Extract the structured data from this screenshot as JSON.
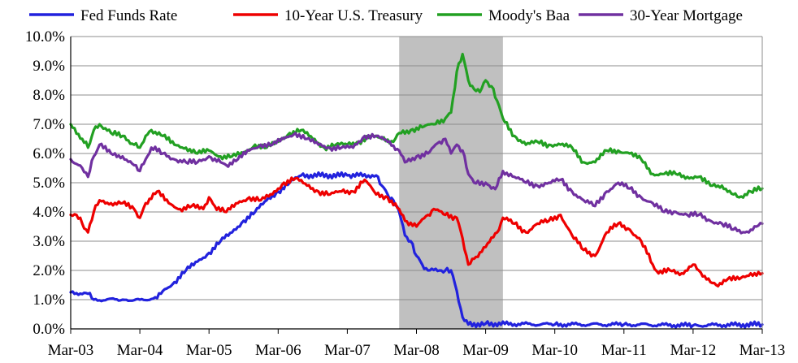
{
  "chart_data": {
    "type": "line",
    "title": "",
    "xlabel": "",
    "ylabel": "",
    "ylim": [
      0,
      10
    ],
    "xlim": [
      "Mar-03",
      "Mar-13"
    ],
    "x_ticks": [
      "Mar-03",
      "Mar-04",
      "Mar-05",
      "Mar-06",
      "Mar-07",
      "Mar-08",
      "Mar-09",
      "Mar-10",
      "Mar-11",
      "Mar-12",
      "Mar-13"
    ],
    "y_ticks": [
      "0.0%",
      "1.0%",
      "2.0%",
      "3.0%",
      "4.0%",
      "5.0%",
      "6.0%",
      "7.0%",
      "8.0%",
      "9.0%",
      "10.0%"
    ],
    "grid": "horizontal",
    "legend_position": "top",
    "shaded_region": {
      "start": "Dec-07",
      "end": "Jun-09",
      "color": "#c0c0c0"
    },
    "series": [
      {
        "name": "Fed Funds Rate",
        "color": "#2222dd",
        "points": [
          [
            "Mar-03",
            1.25
          ],
          [
            "Jun-03",
            1.2
          ],
          [
            "Jul-03",
            1.0
          ],
          [
            "Dec-03",
            1.0
          ],
          [
            "Mar-04",
            1.0
          ],
          [
            "Jun-04",
            1.05
          ],
          [
            "Jul-04",
            1.3
          ],
          [
            "Sep-04",
            1.6
          ],
          [
            "Nov-04",
            2.0
          ],
          [
            "Jan-05",
            2.3
          ],
          [
            "Mar-05",
            2.6
          ],
          [
            "May-05",
            3.0
          ],
          [
            "Jul-05",
            3.3
          ],
          [
            "Sep-05",
            3.7
          ],
          [
            "Nov-05",
            4.0
          ],
          [
            "Jan-06",
            4.4
          ],
          [
            "Mar-06",
            4.7
          ],
          [
            "May-06",
            5.0
          ],
          [
            "Jul-06",
            5.25
          ],
          [
            "Mar-07",
            5.25
          ],
          [
            "Aug-07",
            5.25
          ],
          [
            "Sep-07",
            4.9
          ],
          [
            "Oct-07",
            4.6
          ],
          [
            "Nov-07",
            4.4
          ],
          [
            "Dec-07",
            4.0
          ],
          [
            "Jan-08",
            3.2
          ],
          [
            "Feb-08",
            3.0
          ],
          [
            "Mar-08",
            2.5
          ],
          [
            "Apr-08",
            2.2
          ],
          [
            "May-08",
            2.0
          ],
          [
            "Jul-08",
            2.0
          ],
          [
            "Aug-08",
            2.0
          ],
          [
            "Sep-08",
            2.0
          ],
          [
            "Oct-08",
            1.3
          ],
          [
            "Nov-08",
            0.4
          ],
          [
            "Dec-08",
            0.15
          ],
          [
            "Mar-09",
            0.18
          ],
          [
            "Mar-10",
            0.15
          ],
          [
            "Mar-11",
            0.15
          ],
          [
            "Mar-12",
            0.12
          ],
          [
            "Mar-13",
            0.15
          ]
        ]
      },
      {
        "name": "10-Year U.S. Treasury",
        "color": "#ee0000",
        "points": [
          [
            "Mar-03",
            3.9
          ],
          [
            "Apr-03",
            3.9
          ],
          [
            "May-03",
            3.6
          ],
          [
            "Jun-03",
            3.3
          ],
          [
            "Jul-03",
            4.0
          ],
          [
            "Aug-03",
            4.4
          ],
          [
            "Oct-03",
            4.3
          ],
          [
            "Dec-03",
            4.3
          ],
          [
            "Feb-04",
            4.1
          ],
          [
            "Mar-04",
            3.8
          ],
          [
            "Apr-04",
            4.3
          ],
          [
            "Jun-04",
            4.7
          ],
          [
            "Aug-04",
            4.3
          ],
          [
            "Oct-04",
            4.1
          ],
          [
            "Dec-04",
            4.2
          ],
          [
            "Feb-05",
            4.1
          ],
          [
            "Mar-05",
            4.5
          ],
          [
            "Apr-05",
            4.2
          ],
          [
            "Jun-05",
            4.0
          ],
          [
            "Aug-05",
            4.3
          ],
          [
            "Oct-05",
            4.5
          ],
          [
            "Dec-05",
            4.4
          ],
          [
            "Feb-06",
            4.6
          ],
          [
            "Apr-06",
            5.0
          ],
          [
            "Jun-06",
            5.15
          ],
          [
            "Aug-06",
            4.9
          ],
          [
            "Oct-06",
            4.7
          ],
          [
            "Dec-06",
            4.6
          ],
          [
            "Feb-07",
            4.7
          ],
          [
            "Apr-07",
            4.7
          ],
          [
            "Jun-07",
            5.1
          ],
          [
            "Aug-07",
            4.6
          ],
          [
            "Oct-07",
            4.5
          ],
          [
            "Dec-07",
            4.1
          ],
          [
            "Jan-08",
            3.7
          ],
          [
            "Mar-08",
            3.5
          ],
          [
            "May-08",
            3.9
          ],
          [
            "Jun-08",
            4.1
          ],
          [
            "Aug-08",
            3.9
          ],
          [
            "Oct-08",
            3.8
          ],
          [
            "Nov-08",
            3.1
          ],
          [
            "Dec-08",
            2.2
          ],
          [
            "Jan-09",
            2.4
          ],
          [
            "Mar-09",
            2.8
          ],
          [
            "May-09",
            3.3
          ],
          [
            "Jun-09",
            3.8
          ],
          [
            "Aug-09",
            3.6
          ],
          [
            "Oct-09",
            3.3
          ],
          [
            "Dec-09",
            3.6
          ],
          [
            "Feb-10",
            3.7
          ],
          [
            "Apr-10",
            3.9
          ],
          [
            "Jun-10",
            3.2
          ],
          [
            "Aug-10",
            2.7
          ],
          [
            "Oct-10",
            2.5
          ],
          [
            "Dec-10",
            3.3
          ],
          [
            "Feb-11",
            3.6
          ],
          [
            "Apr-11",
            3.4
          ],
          [
            "Jun-11",
            3.0
          ],
          [
            "Aug-11",
            2.2
          ],
          [
            "Sep-11",
            1.9
          ],
          [
            "Nov-11",
            2.0
          ],
          [
            "Jan-12",
            1.9
          ],
          [
            "Mar-12",
            2.2
          ],
          [
            "Apr-12",
            2.0
          ],
          [
            "Jun-12",
            1.6
          ],
          [
            "Jul-12",
            1.5
          ],
          [
            "Sep-12",
            1.7
          ],
          [
            "Nov-12",
            1.7
          ],
          [
            "Jan-13",
            1.9
          ],
          [
            "Mar-13",
            1.9
          ]
        ]
      },
      {
        "name": "Moody's Baa",
        "color": "#22a022",
        "points": [
          [
            "Mar-03",
            7.0
          ],
          [
            "May-03",
            6.5
          ],
          [
            "Jun-03",
            6.2
          ],
          [
            "Jul-03",
            6.8
          ],
          [
            "Aug-03",
            7.0
          ],
          [
            "Oct-03",
            6.7
          ],
          [
            "Dec-03",
            6.6
          ],
          [
            "Feb-04",
            6.3
          ],
          [
            "Mar-04",
            6.2
          ],
          [
            "Apr-04",
            6.6
          ],
          [
            "May-04",
            6.8
          ],
          [
            "Jul-04",
            6.6
          ],
          [
            "Sep-04",
            6.3
          ],
          [
            "Nov-04",
            6.2
          ],
          [
            "Jan-05",
            6.0
          ],
          [
            "Mar-05",
            6.1
          ],
          [
            "May-05",
            5.9
          ],
          [
            "Jul-05",
            5.9
          ],
          [
            "Sep-05",
            6.0
          ],
          [
            "Nov-05",
            6.3
          ],
          [
            "Jan-06",
            6.2
          ],
          [
            "Mar-06",
            6.4
          ],
          [
            "May-06",
            6.7
          ],
          [
            "Jul-06",
            6.8
          ],
          [
            "Sep-06",
            6.5
          ],
          [
            "Nov-06",
            6.2
          ],
          [
            "Jan-07",
            6.3
          ],
          [
            "Mar-07",
            6.3
          ],
          [
            "May-07",
            6.4
          ],
          [
            "Jul-07",
            6.6
          ],
          [
            "Sep-07",
            6.5
          ],
          [
            "Nov-07",
            6.4
          ],
          [
            "Dec-07",
            6.7
          ],
          [
            "Feb-08",
            6.8
          ],
          [
            "Apr-08",
            6.9
          ],
          [
            "Jun-08",
            7.0
          ],
          [
            "Aug-08",
            7.2
          ],
          [
            "Sep-08",
            7.4
          ],
          [
            "Oct-08",
            8.8
          ],
          [
            "Nov-08",
            9.4
          ],
          [
            "Dec-08",
            8.5
          ],
          [
            "Jan-09",
            8.2
          ],
          [
            "Feb-09",
            8.1
          ],
          [
            "Mar-09",
            8.5
          ],
          [
            "Apr-09",
            8.3
          ],
          [
            "May-09",
            7.8
          ],
          [
            "Jun-09",
            7.2
          ],
          [
            "Aug-09",
            6.6
          ],
          [
            "Oct-09",
            6.3
          ],
          [
            "Dec-09",
            6.4
          ],
          [
            "Feb-10",
            6.3
          ],
          [
            "Apr-10",
            6.3
          ],
          [
            "Jun-10",
            6.2
          ],
          [
            "Aug-10",
            5.7
          ],
          [
            "Oct-10",
            5.7
          ],
          [
            "Dec-10",
            6.1
          ],
          [
            "Feb-11",
            6.1
          ],
          [
            "Apr-11",
            6.0
          ],
          [
            "Jun-11",
            5.8
          ],
          [
            "Aug-11",
            5.3
          ],
          [
            "Oct-11",
            5.3
          ],
          [
            "Dec-11",
            5.3
          ],
          [
            "Feb-12",
            5.2
          ],
          [
            "Apr-12",
            5.2
          ],
          [
            "Jun-12",
            4.9
          ],
          [
            "Aug-12",
            4.9
          ],
          [
            "Oct-12",
            4.6
          ],
          [
            "Nov-12",
            4.5
          ],
          [
            "Jan-13",
            4.7
          ],
          [
            "Mar-13",
            4.8
          ]
        ]
      },
      {
        "name": "30-Year Mortgage",
        "color": "#7030a0",
        "points": [
          [
            "Mar-03",
            5.8
          ],
          [
            "May-03",
            5.5
          ],
          [
            "Jun-03",
            5.2
          ],
          [
            "Jul-03",
            5.9
          ],
          [
            "Aug-03",
            6.3
          ],
          [
            "Oct-03",
            6.0
          ],
          [
            "Dec-03",
            5.9
          ],
          [
            "Feb-04",
            5.6
          ],
          [
            "Mar-04",
            5.4
          ],
          [
            "Apr-04",
            5.8
          ],
          [
            "May-04",
            6.2
          ],
          [
            "Jul-04",
            6.0
          ],
          [
            "Sep-04",
            5.8
          ],
          [
            "Nov-04",
            5.7
          ],
          [
            "Jan-05",
            5.7
          ],
          [
            "Mar-05",
            5.9
          ],
          [
            "May-05",
            5.7
          ],
          [
            "Jun-05",
            5.6
          ],
          [
            "Aug-05",
            5.8
          ],
          [
            "Oct-05",
            6.1
          ],
          [
            "Dec-05",
            6.3
          ],
          [
            "Feb-06",
            6.3
          ],
          [
            "Apr-06",
            6.5
          ],
          [
            "Jun-06",
            6.7
          ],
          [
            "Aug-06",
            6.5
          ],
          [
            "Oct-06",
            6.3
          ],
          [
            "Dec-06",
            6.2
          ],
          [
            "Feb-07",
            6.2
          ],
          [
            "Apr-07",
            6.2
          ],
          [
            "Jun-07",
            6.6
          ],
          [
            "Aug-07",
            6.6
          ],
          [
            "Oct-07",
            6.4
          ],
          [
            "Dec-07",
            6.1
          ],
          [
            "Jan-08",
            5.7
          ],
          [
            "Mar-08",
            5.9
          ],
          [
            "May-08",
            6.0
          ],
          [
            "Jul-08",
            6.4
          ],
          [
            "Aug-08",
            6.5
          ],
          [
            "Sep-08",
            6.0
          ],
          [
            "Oct-08",
            6.3
          ],
          [
            "Nov-08",
            6.1
          ],
          [
            "Dec-08",
            5.3
          ],
          [
            "Jan-09",
            5.0
          ],
          [
            "Mar-09",
            5.0
          ],
          [
            "Apr-09",
            4.8
          ],
          [
            "May-09",
            4.9
          ],
          [
            "Jun-09",
            5.4
          ],
          [
            "Aug-09",
            5.2
          ],
          [
            "Oct-09",
            5.0
          ],
          [
            "Dec-09",
            4.9
          ],
          [
            "Feb-10",
            5.0
          ],
          [
            "Apr-10",
            5.1
          ],
          [
            "Jun-10",
            4.7
          ],
          [
            "Aug-10",
            4.4
          ],
          [
            "Oct-10",
            4.2
          ],
          [
            "Dec-10",
            4.7
          ],
          [
            "Feb-11",
            5.0
          ],
          [
            "Apr-11",
            4.8
          ],
          [
            "Jun-11",
            4.5
          ],
          [
            "Aug-11",
            4.3
          ],
          [
            "Oct-11",
            4.0
          ],
          [
            "Dec-11",
            4.0
          ],
          [
            "Feb-12",
            3.9
          ],
          [
            "Apr-12",
            3.9
          ],
          [
            "Jun-12",
            3.7
          ],
          [
            "Aug-12",
            3.6
          ],
          [
            "Oct-12",
            3.4
          ],
          [
            "Dec-12",
            3.3
          ],
          [
            "Feb-13",
            3.5
          ],
          [
            "Mar-13",
            3.6
          ]
        ]
      }
    ]
  }
}
